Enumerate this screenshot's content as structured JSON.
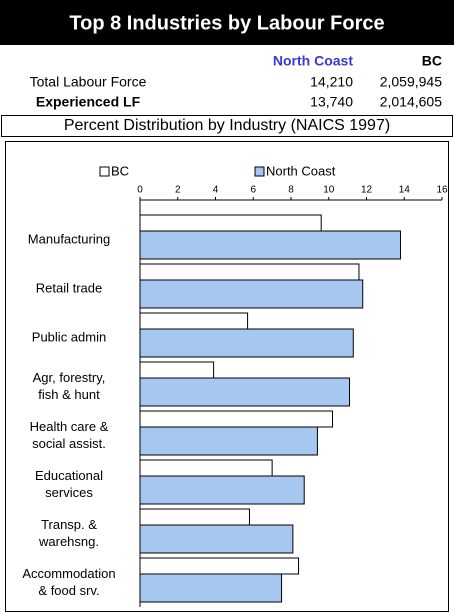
{
  "chart_data": {
    "type": "bar",
    "orientation": "horizontal",
    "title": "Top 8 Industries by Labour Force",
    "table": {
      "columns": [
        "North Coast",
        "BC"
      ],
      "rows": [
        [
          "Total Labour Force",
          "14,210",
          "2,059,945"
        ],
        [
          "Experienced LF",
          "13,740",
          "2,014,605"
        ]
      ]
    },
    "subtitle": "Percent Distribution by Industry (NAICS 1997)",
    "categories": [
      "Manufacturing",
      "Retail trade",
      "Public admin",
      "Agr, forestry,\nfish & hunt",
      "Health care &\nsocial assist.",
      "Educational\nservices",
      "Transp. &\nwarehsng.",
      "Accommodation\n& food srv."
    ],
    "series": [
      {
        "name": "BC",
        "color": "#ffffff",
        "values": [
          9.6,
          11.6,
          5.7,
          3.9,
          10.2,
          7.0,
          5.8,
          8.4
        ]
      },
      {
        "name": "North Coast",
        "color": "#a6c8f0",
        "values": [
          13.8,
          11.8,
          11.3,
          11.1,
          9.4,
          8.7,
          8.1,
          7.5
        ]
      }
    ],
    "xlim": [
      0,
      16
    ],
    "xticks": [
      0,
      2,
      4,
      6,
      8,
      10,
      12,
      14,
      16
    ]
  }
}
